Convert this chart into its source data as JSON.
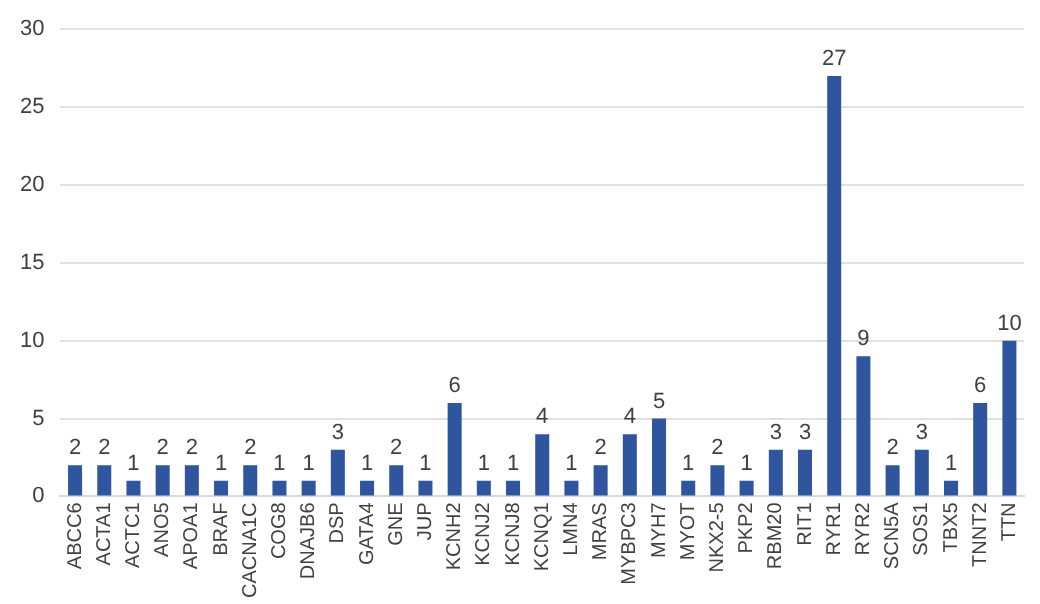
{
  "chart_data": {
    "type": "bar",
    "categories": [
      "ABCC6",
      "ACTA1",
      "ACTC1",
      "ANO5",
      "APOA1",
      "BRAF",
      "CACNA1C",
      "COG8",
      "DNAJB6",
      "DSP",
      "GATA4",
      "GNE",
      "JUP",
      "KCNH2",
      "KCNJ2",
      "KCNJ8",
      "KCNQ1",
      "LMN4",
      "MRAS",
      "MYBPC3",
      "MYH7",
      "MYOT",
      "NKX2-5",
      "PKP2",
      "RBM20",
      "RIT1",
      "RYR1",
      "RYR2",
      "SCN5A",
      "SOS1",
      "TBX5",
      "TNNT2",
      "TTN"
    ],
    "values": [
      2,
      2,
      1,
      2,
      2,
      1,
      2,
      1,
      1,
      3,
      1,
      2,
      1,
      6,
      1,
      1,
      4,
      1,
      2,
      4,
      5,
      1,
      2,
      1,
      3,
      3,
      27,
      9,
      2,
      3,
      1,
      6,
      10
    ],
    "color": "#2f559e",
    "ylim": [
      0,
      30
    ],
    "yticks": [
      0,
      5,
      10,
      15,
      20,
      25,
      30
    ],
    "grid": "y",
    "data_labels": true
  }
}
